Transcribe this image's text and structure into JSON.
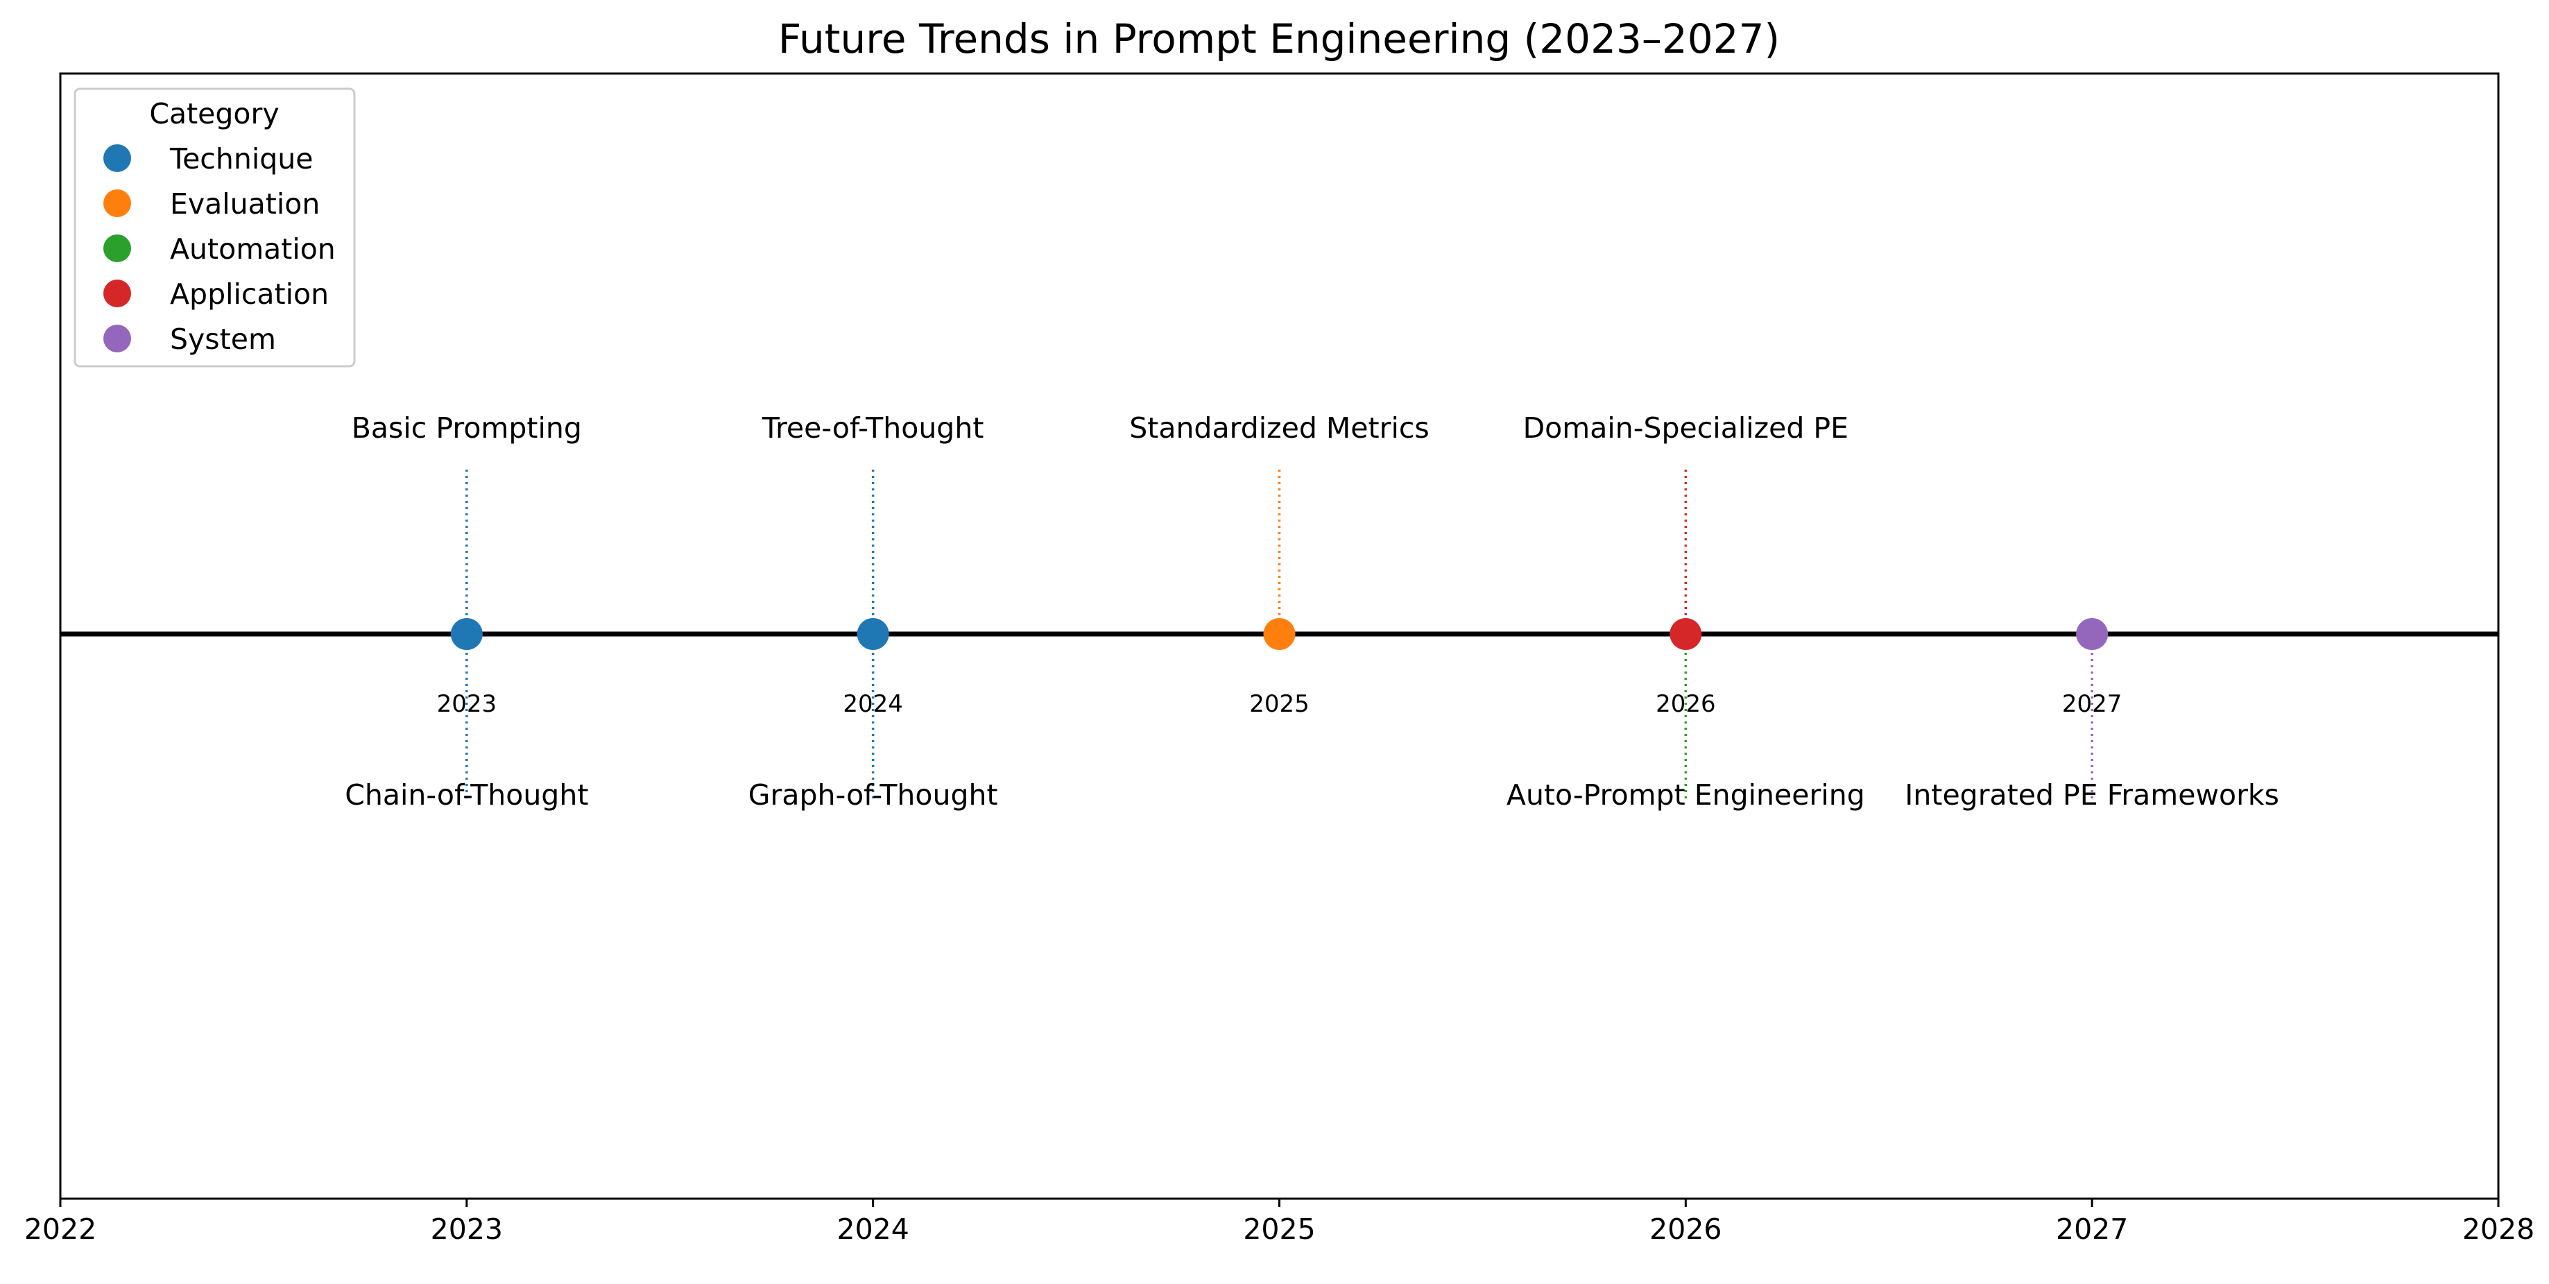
{
  "chart_data": {
    "type": "timeline",
    "title": "Future Trends in Prompt Engineering (2023–2027)",
    "xlim": [
      2022,
      2028
    ],
    "xticks": [
      "2022",
      "2023",
      "2024",
      "2025",
      "2026",
      "2027",
      "2028"
    ],
    "grid": false,
    "legend": {
      "title": "Category",
      "placement": "top-left",
      "entries": [
        {
          "name": "Technique",
          "color": "#1f77b4"
        },
        {
          "name": "Evaluation",
          "color": "#ff7f0e"
        },
        {
          "name": "Automation",
          "color": "#2ca02c"
        },
        {
          "name": "Application",
          "color": "#d62728"
        },
        {
          "name": "System",
          "color": "#9467bd"
        }
      ]
    },
    "markers": [
      {
        "year": 2023,
        "year_label": "2023",
        "category": "Technique"
      },
      {
        "year": 2024,
        "year_label": "2024",
        "category": "Technique"
      },
      {
        "year": 2025,
        "year_label": "2025",
        "category": "Evaluation"
      },
      {
        "year": 2026,
        "year_label": "2026",
        "category": "Application"
      },
      {
        "year": 2027,
        "year_label": "2027",
        "category": "System"
      }
    ],
    "events": [
      {
        "year": 2023,
        "label": "Basic Prompting",
        "category": "Technique",
        "side": "above"
      },
      {
        "year": 2023,
        "label": "Chain-of-Thought",
        "category": "Technique",
        "side": "below"
      },
      {
        "year": 2024,
        "label": "Tree-of-Thought",
        "category": "Technique",
        "side": "above"
      },
      {
        "year": 2024,
        "label": "Graph-of-Thought",
        "category": "Technique",
        "side": "below"
      },
      {
        "year": 2025,
        "label": "Standardized Metrics",
        "category": "Evaluation",
        "side": "above"
      },
      {
        "year": 2026,
        "label": "Domain-Specialized PE",
        "category": "Application",
        "side": "above"
      },
      {
        "year": 2026,
        "label": "Auto-Prompt Engineering",
        "category": "Automation",
        "side": "below"
      },
      {
        "year": 2027,
        "label": "Integrated PE Frameworks",
        "category": "System",
        "side": "below"
      }
    ]
  }
}
